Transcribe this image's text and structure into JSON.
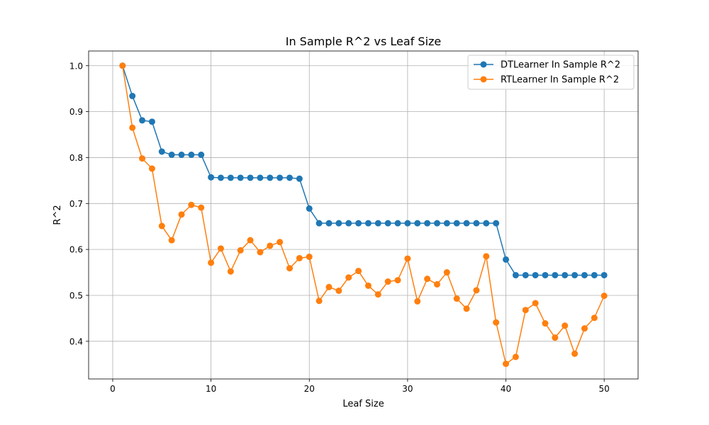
{
  "chart_data": {
    "type": "line",
    "title": "In Sample R^2 vs Leaf Size",
    "xlabel": "Leaf Size",
    "ylabel": "R^2",
    "xlim": [
      -2.45,
      53.45
    ],
    "ylim": [
      0.318,
      1.032
    ],
    "xticks": [
      0,
      10,
      20,
      30,
      40,
      50
    ],
    "xtick_labels": [
      "0",
      "10",
      "20",
      "30",
      "40",
      "50"
    ],
    "yticks": [
      0.4,
      0.5,
      0.6,
      0.7,
      0.8,
      0.9,
      1.0
    ],
    "ytick_labels": [
      "0.4",
      "0.5",
      "0.6",
      "0.7",
      "0.8",
      "0.9",
      "1.0"
    ],
    "grid": true,
    "legend_position": "top-right",
    "x": [
      1,
      2,
      3,
      4,
      5,
      6,
      7,
      8,
      9,
      10,
      11,
      12,
      13,
      14,
      15,
      16,
      17,
      18,
      19,
      20,
      21,
      22,
      23,
      24,
      25,
      26,
      27,
      28,
      29,
      30,
      31,
      32,
      33,
      34,
      35,
      36,
      37,
      38,
      39,
      40,
      41,
      42,
      43,
      44,
      45,
      46,
      47,
      48,
      49,
      50
    ],
    "series": [
      {
        "name": "DTLearner In Sample R^2",
        "color": "#1f77b4",
        "values": [
          1.0,
          0.934,
          0.881,
          0.878,
          0.813,
          0.806,
          0.806,
          0.806,
          0.806,
          0.757,
          0.756,
          0.756,
          0.756,
          0.756,
          0.756,
          0.756,
          0.756,
          0.756,
          0.754,
          0.689,
          0.657,
          0.657,
          0.657,
          0.657,
          0.657,
          0.657,
          0.657,
          0.657,
          0.657,
          0.657,
          0.657,
          0.657,
          0.657,
          0.657,
          0.657,
          0.657,
          0.657,
          0.657,
          0.657,
          0.578,
          0.544,
          0.544,
          0.544,
          0.544,
          0.544,
          0.544,
          0.544,
          0.544,
          0.544,
          0.544
        ]
      },
      {
        "name": "RTLearner In Sample R^2",
        "color": "#ff7f0e",
        "values": [
          1.0,
          0.865,
          0.798,
          0.776,
          0.651,
          0.62,
          0.676,
          0.697,
          0.691,
          0.571,
          0.602,
          0.552,
          0.598,
          0.62,
          0.594,
          0.608,
          0.616,
          0.559,
          0.581,
          0.584,
          0.488,
          0.518,
          0.51,
          0.539,
          0.553,
          0.521,
          0.502,
          0.53,
          0.533,
          0.58,
          0.487,
          0.536,
          0.524,
          0.55,
          0.493,
          0.471,
          0.511,
          0.585,
          0.441,
          0.351,
          0.366,
          0.468,
          0.483,
          0.439,
          0.408,
          0.434,
          0.373,
          0.428,
          0.451,
          0.499
        ]
      }
    ]
  }
}
